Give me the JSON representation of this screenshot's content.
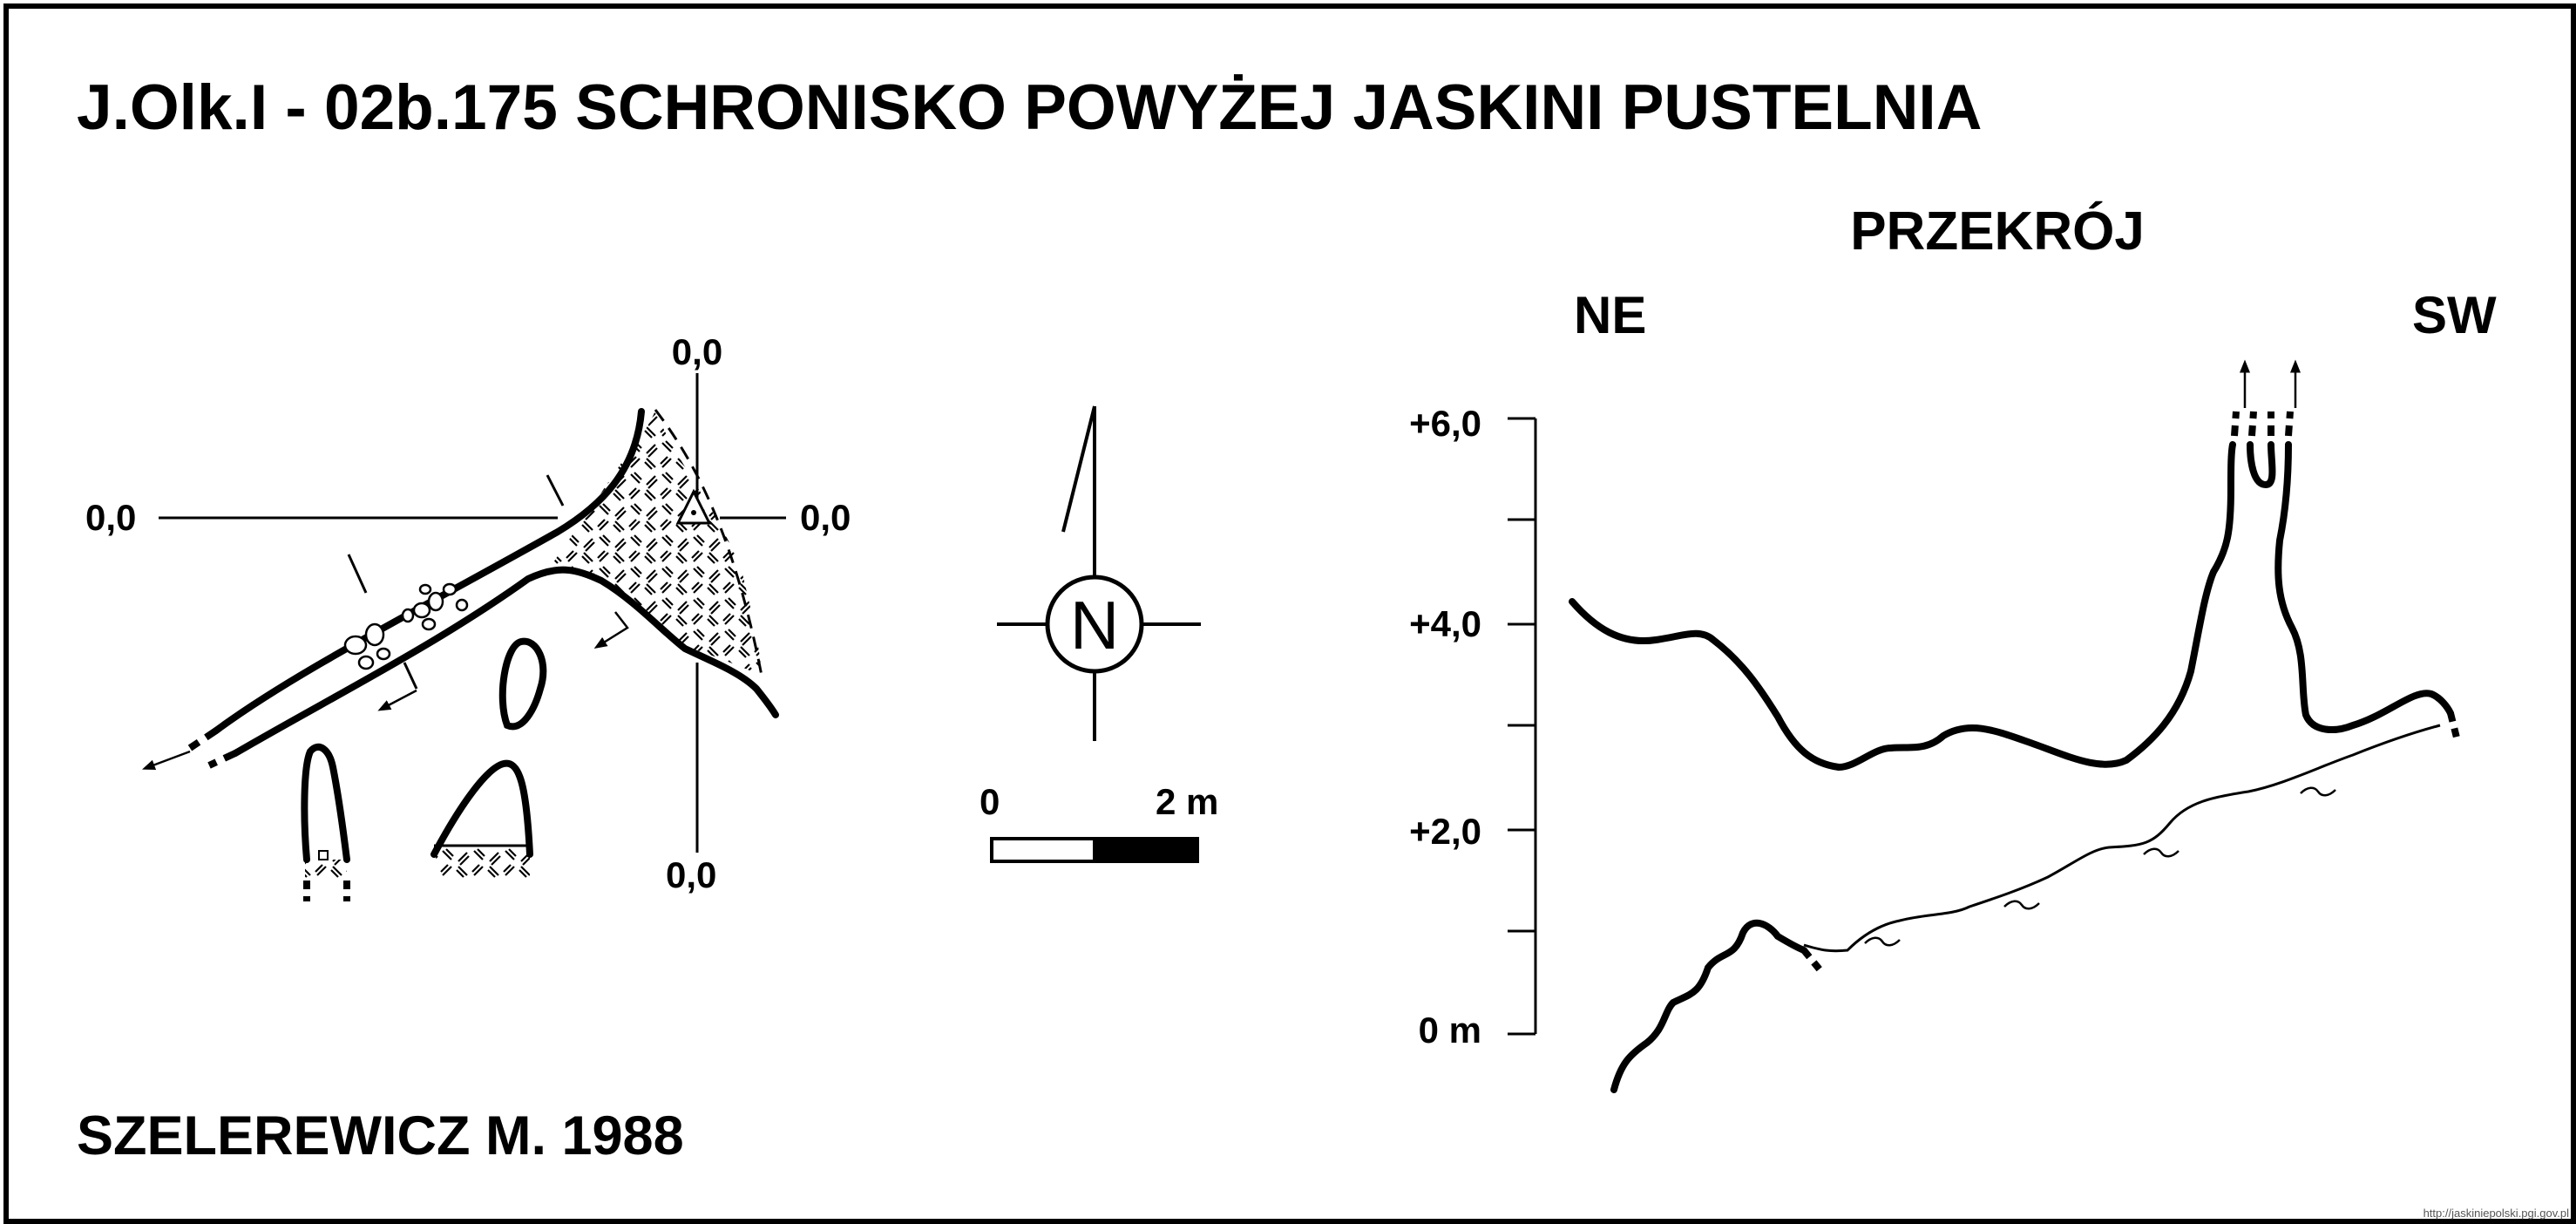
{
  "title": "J.Olk.I - 02b.175  SCHRONISKO POWYŻEJ JASKINI PUSTELNIA",
  "author": "SZELEREWICZ M. 1988",
  "plan": {
    "level_labels": {
      "top": "0,0",
      "left": "0,0",
      "right": "0,0",
      "bottom": "0,0"
    }
  },
  "compass": {
    "letter": "N"
  },
  "scale": {
    "start": "0",
    "end": "2 m"
  },
  "section": {
    "title": "PRZEKRÓJ",
    "left_dir": "NE",
    "right_dir": "SW",
    "axis_labels": [
      "+6,0",
      "+4,0",
      "+2,0",
      "0 m"
    ]
  },
  "watermark": "http://jaskiniepolski.pgi.gov.pl"
}
